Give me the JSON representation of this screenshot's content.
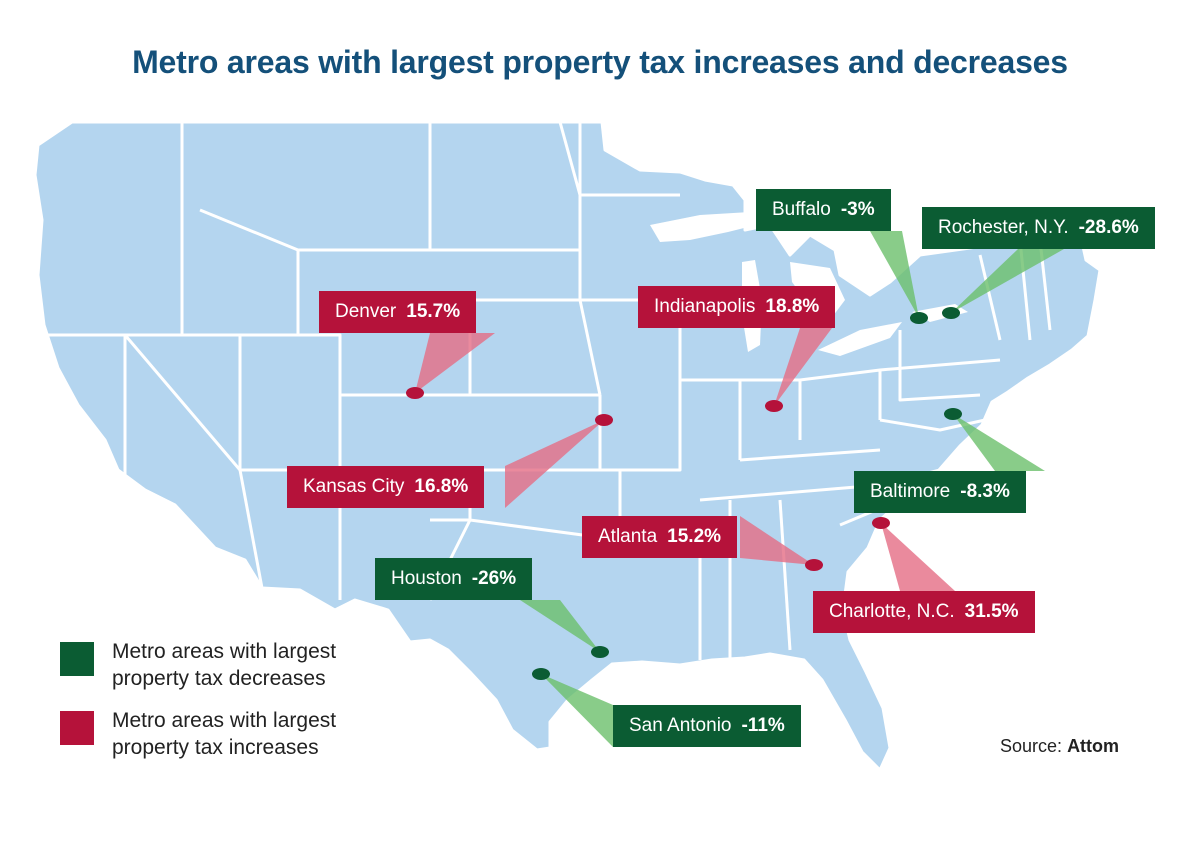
{
  "title": "Metro areas with largest property tax increases and decreases",
  "colors": {
    "decrease": "#0b5c33",
    "increase": "#b5123a",
    "decrease_leader": "#6cbf6c",
    "increase_leader": "#e56d84",
    "land": "#b4d5ef",
    "borders": "#ffffff",
    "title": "#14507a"
  },
  "metros": [
    {
      "id": "buffalo",
      "name": "Buffalo",
      "value": "-3%",
      "kind": "decrease"
    },
    {
      "id": "rochester",
      "name": "Rochester, N.Y.",
      "value": "-28.6%",
      "kind": "decrease"
    },
    {
      "id": "denver",
      "name": "Denver",
      "value": "15.7%",
      "kind": "increase"
    },
    {
      "id": "indianapolis",
      "name": "Indianapolis",
      "value": "18.8%",
      "kind": "increase"
    },
    {
      "id": "kansas-city",
      "name": "Kansas City",
      "value": "16.8%",
      "kind": "increase"
    },
    {
      "id": "baltimore",
      "name": "Baltimore",
      "value": "-8.3%",
      "kind": "decrease"
    },
    {
      "id": "atlanta",
      "name": "Atlanta",
      "value": "15.2%",
      "kind": "increase"
    },
    {
      "id": "houston",
      "name": "Houston",
      "value": "-26%",
      "kind": "decrease"
    },
    {
      "id": "charlotte",
      "name": "Charlotte, N.C.",
      "value": "31.5%",
      "kind": "increase"
    },
    {
      "id": "san-antonio",
      "name": "San Antonio",
      "value": "-11%",
      "kind": "decrease"
    }
  ],
  "legend": {
    "decrease": "Metro areas with largest property tax decreases",
    "increase": "Metro areas with largest property tax increases"
  },
  "source": {
    "prefix": "Source:",
    "name": "Attom"
  }
}
